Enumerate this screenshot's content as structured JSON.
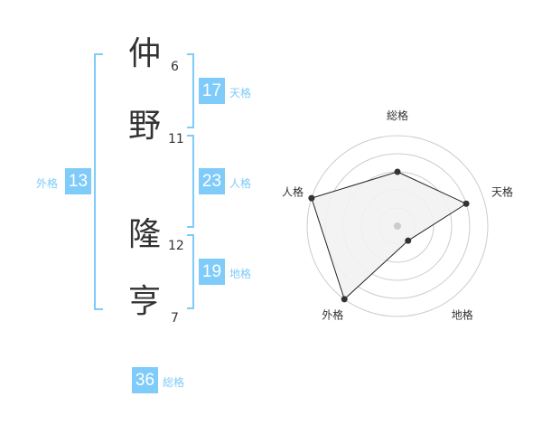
{
  "name": {
    "characters": [
      {
        "char": "仲",
        "strokes": "6"
      },
      {
        "char": "野",
        "strokes": "11"
      },
      {
        "char": "隆",
        "strokes": "12"
      },
      {
        "char": "亨",
        "strokes": "7"
      }
    ]
  },
  "kaku": {
    "tenkaku": {
      "value": "17",
      "label": "天格"
    },
    "jinkaku": {
      "value": "23",
      "label": "人格"
    },
    "chikaku": {
      "value": "19",
      "label": "地格"
    },
    "gaikaku": {
      "value": "13",
      "label": "外格"
    },
    "soukaku": {
      "value": "36",
      "label": "総格"
    }
  },
  "colors": {
    "accent": "#7fcbf9",
    "text": "#333333",
    "ring": "#cccccc",
    "fill": "#f2f2f2"
  },
  "chart_data": {
    "type": "radar",
    "axes": [
      "総格",
      "天格",
      "地格",
      "外格",
      "人格"
    ],
    "values": [
      3,
      4,
      1,
      5,
      5
    ],
    "range": [
      0,
      5
    ],
    "rings": 5
  }
}
